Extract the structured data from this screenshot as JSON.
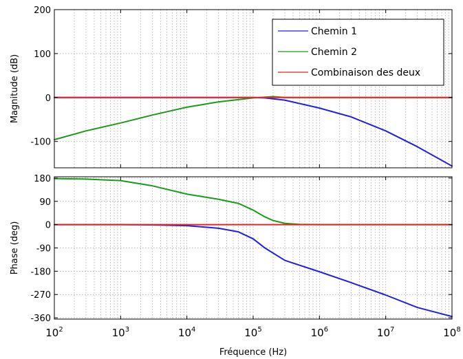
{
  "chart_data": [
    {
      "type": "line",
      "name": "magnitude-plot",
      "ylabel": "Magnitude (dB)",
      "xlabel": "",
      "x_scale": "log",
      "xlim": [
        100,
        100000000
      ],
      "ylim": [
        -160,
        200
      ],
      "yticks": [
        {
          "value": 200,
          "label": "200"
        },
        {
          "value": 100,
          "label": "100"
        },
        {
          "value": 0,
          "label": "0"
        },
        {
          "value": -100,
          "label": "-100"
        }
      ],
      "grid": true,
      "legend_position": "top-right",
      "series": [
        {
          "name": "Chemin 1",
          "color": "#1f1fe6",
          "x": [
            100,
            1000,
            10000,
            100000,
            150000,
            300000,
            1000000,
            3000000,
            10000000,
            30000000,
            100000000
          ],
          "y": [
            0,
            0,
            0,
            0,
            -1,
            -6,
            -24,
            -44,
            -76,
            -112,
            -156
          ]
        },
        {
          "name": "Chemin 2",
          "color": "#1a9a1a",
          "x": [
            100,
            300,
            1000,
            3000,
            10000,
            30000,
            100000,
            200000,
            300000,
            500000,
            1000000,
            100000000
          ],
          "y": [
            -96,
            -76,
            -58,
            -40,
            -22,
            -10,
            -1,
            2,
            0,
            0,
            0,
            0
          ]
        },
        {
          "name": "Combinaison des deux",
          "color": "#ee2020",
          "x": [
            100,
            100000000
          ],
          "y": [
            0,
            0
          ]
        }
      ]
    },
    {
      "type": "line",
      "name": "phase-plot",
      "ylabel": "Phase (deg)",
      "xlabel": "Fréquence  (Hz)",
      "x_scale": "log",
      "xlim": [
        100,
        100000000
      ],
      "ylim": [
        -365,
        185
      ],
      "yticks": [
        {
          "value": 180,
          "label": "180"
        },
        {
          "value": 90,
          "label": "90"
        },
        {
          "value": 0,
          "label": "0"
        },
        {
          "value": -90,
          "label": "-90"
        },
        {
          "value": -180,
          "label": "-180"
        },
        {
          "value": -270,
          "label": "-270"
        },
        {
          "value": -360,
          "label": "-360"
        }
      ],
      "xticks": [
        {
          "value": 100,
          "base": "10",
          "exp": "2"
        },
        {
          "value": 1000,
          "base": "10",
          "exp": "3"
        },
        {
          "value": 10000,
          "base": "10",
          "exp": "4"
        },
        {
          "value": 100000,
          "base": "10",
          "exp": "5"
        },
        {
          "value": 1000000,
          "base": "10",
          "exp": "6"
        },
        {
          "value": 10000000,
          "base": "10",
          "exp": "7"
        },
        {
          "value": 100000000,
          "base": "10",
          "exp": "8"
        }
      ],
      "grid": true,
      "series": [
        {
          "name": "Chemin 1",
          "color": "#1f1fe6",
          "x": [
            100,
            1000,
            3000,
            10000,
            30000,
            60000,
            100000,
            150000,
            300000,
            1000000,
            3000000,
            10000000,
            30000000,
            100000000
          ],
          "y": [
            0,
            0,
            -1,
            -4,
            -14,
            -28,
            -55,
            -90,
            -138,
            -182,
            -224,
            -272,
            -320,
            -355
          ]
        },
        {
          "name": "Chemin 2",
          "color": "#1a9a1a",
          "x": [
            100,
            300,
            1000,
            3000,
            10000,
            30000,
            60000,
            100000,
            150000,
            200000,
            300000,
            500000,
            1000000,
            100000000
          ],
          "y": [
            178,
            176,
            170,
            150,
            118,
            98,
            82,
            56,
            30,
            16,
            5,
            1,
            0,
            0
          ]
        },
        {
          "name": "Combinaison des deux",
          "color": "#ee2020",
          "x": [
            100,
            100000000
          ],
          "y": [
            0,
            0
          ]
        }
      ]
    }
  ]
}
